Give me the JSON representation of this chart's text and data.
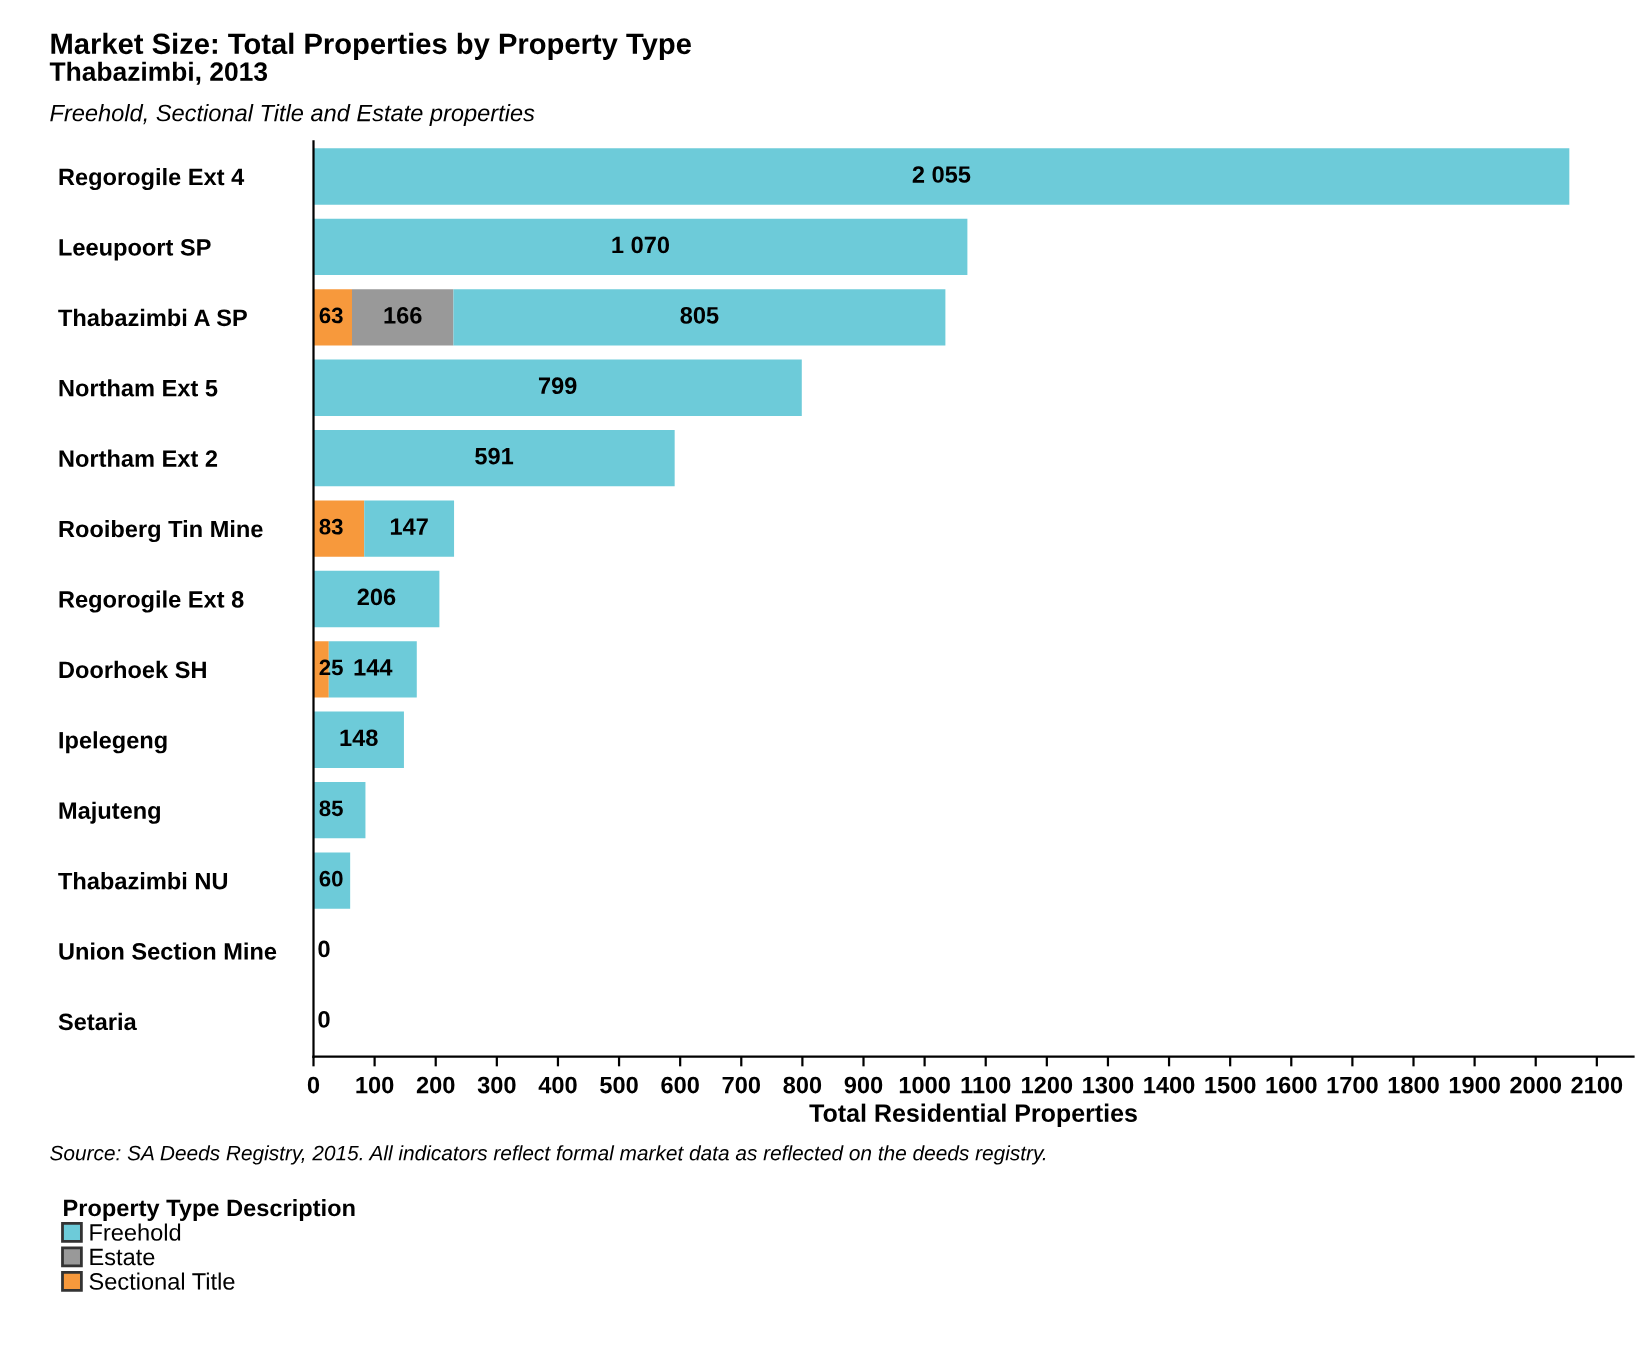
{
  "chart_data": {
    "type": "bar",
    "orientation": "horizontal",
    "stacked": true,
    "title": "Market Size: Total Properties by Property Type",
    "subtitle": "Thabazimbi, 2013",
    "xlabel": "Total Residential Properties",
    "legend_title": "Property Type Description",
    "legend": "bottom left",
    "categories": [
      "Regorogile Ext 4",
      "Leeupoort SP",
      "Thabazimbi A SP",
      "Northam Ext 5",
      "Northam Ext 2",
      "Rooiberg Tin Mine",
      "Regorogile Ext 8",
      "Doorhoek SH",
      "Ipelegeng",
      "Majuteng",
      "Thabazimbi NU",
      "Union Section Mine",
      "Setaria"
    ],
    "series": [
      {
        "name": "Sectional Title",
        "color": "#f7993c",
        "values": [
          null,
          null,
          63,
          null,
          null,
          83,
          null,
          25,
          null,
          null,
          null,
          null,
          null
        ],
        "value_labels": [
          null,
          null,
          "63",
          null,
          null,
          "83",
          null,
          "25",
          null,
          null,
          null,
          null,
          null
        ]
      },
      {
        "name": "Estate",
        "color": "#999999",
        "values": [
          null,
          null,
          166,
          null,
          null,
          null,
          null,
          null,
          null,
          null,
          null,
          null,
          null
        ],
        "value_labels": [
          null,
          null,
          "166",
          null,
          null,
          null,
          null,
          null,
          null,
          null,
          null,
          null,
          null
        ]
      },
      {
        "name": "Freehold",
        "color": "#6dcbd9",
        "values": [
          2055,
          1070,
          805,
          799,
          591,
          147,
          206,
          144,
          148,
          85,
          60,
          0,
          0
        ],
        "value_labels": [
          "2 055",
          "1 070",
          "805",
          "799",
          "591",
          "147",
          "206",
          "144",
          "148",
          "85",
          "60",
          "0",
          "0"
        ]
      }
    ],
    "xlim": [
      0,
      2160
    ],
    "xticks": [
      0,
      100,
      200,
      300,
      400,
      500,
      600,
      700,
      800,
      900,
      1000,
      1100,
      1200,
      1300,
      1400,
      1500,
      1600,
      1700,
      1800,
      1900,
      2000,
      2100
    ],
    "grid": false,
    "annotations": [
      "Freehold, Sectional Title and Estate properties",
      "Source: SA Deeds Registry, 2015. All indicators reflect formal market data as reflected on the deeds registry."
    ]
  }
}
